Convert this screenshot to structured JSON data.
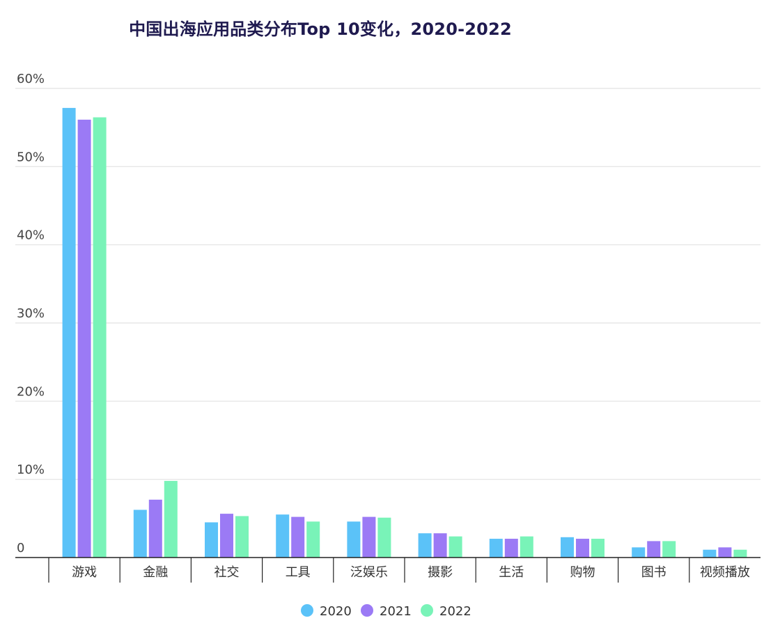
{
  "chart_data": {
    "type": "bar",
    "title": "中国出海应用品类分布Top 10变化，2020-2022",
    "xlabel": "",
    "ylabel": "",
    "categories": [
      "游戏",
      "金融",
      "社交",
      "工具",
      "泛娱乐",
      "摄影",
      "生活",
      "购物",
      "图书",
      "视频播放"
    ],
    "series": [
      {
        "name": "2020",
        "color": "#5bc2f8",
        "values": [
          57.5,
          6.1,
          4.5,
          5.5,
          4.6,
          3.1,
          2.4,
          2.6,
          1.3,
          1.0
        ]
      },
      {
        "name": "2021",
        "color": "#9b7af5",
        "values": [
          56.0,
          7.4,
          5.6,
          5.2,
          5.2,
          3.1,
          2.4,
          2.4,
          2.1,
          1.3
        ]
      },
      {
        "name": "2022",
        "color": "#79f3b8",
        "values": [
          56.3,
          9.8,
          5.3,
          4.6,
          5.1,
          2.7,
          2.7,
          2.4,
          2.1,
          1.0
        ]
      }
    ],
    "ylim": [
      0,
      60
    ],
    "yticks": [
      0,
      10,
      20,
      30,
      40,
      50,
      60
    ],
    "ytick_labels": [
      "0",
      "10%",
      "20%",
      "30%",
      "40%",
      "50%",
      "60%"
    ],
    "grid": true,
    "legend_position": "bottom-center"
  }
}
